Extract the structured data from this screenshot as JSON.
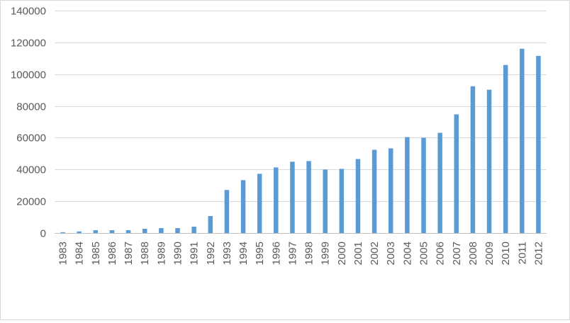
{
  "chart_data": {
    "type": "bar",
    "title": "",
    "xlabel": "",
    "ylabel": "",
    "ylim": [
      0,
      140000
    ],
    "yticks": [
      0,
      20000,
      40000,
      60000,
      80000,
      100000,
      120000,
      140000
    ],
    "ytick_labels": [
      "0",
      "20000",
      "40000",
      "60000",
      "80000",
      "100000",
      "120000",
      "140000"
    ],
    "grid": true,
    "legend": "none",
    "categories": [
      "1983",
      "1984",
      "1985",
      "1986",
      "1987",
      "1988",
      "1989",
      "1990",
      "1991",
      "1992",
      "1993",
      "1994",
      "1995",
      "1996",
      "1997",
      "1998",
      "1999",
      "2000",
      "2001",
      "2002",
      "2003",
      "2004",
      "2005",
      "2006",
      "2007",
      "2008",
      "2009",
      "2010",
      "2011",
      "2012"
    ],
    "values": [
      500,
      1000,
      1800,
      1800,
      1800,
      2700,
      3100,
      3100,
      4000,
      10700,
      27100,
      33300,
      37300,
      41300,
      44900,
      45300,
      40000,
      40400,
      46600,
      52400,
      53300,
      60400,
      60000,
      63100,
      74700,
      92400,
      90200,
      105800,
      116000,
      111500
    ],
    "bar_color": "#5B9BD5",
    "grid_color": "#d9d9d9",
    "axis_color": "#bfbfbf",
    "text_color": "#595959"
  }
}
